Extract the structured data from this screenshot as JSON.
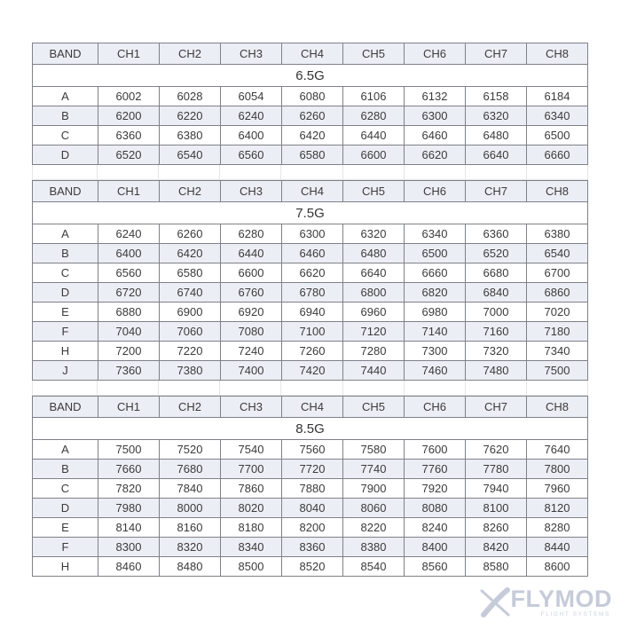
{
  "colors": {
    "border_dark": "#7e8187",
    "border_light": "#e4e5e9",
    "header_bg": "#eceef5",
    "stripe_bg": "#eceef5",
    "text": "#3b3b3b",
    "logo": "#c6cbd9"
  },
  "logo": {
    "x_icon": "x-blades-icon",
    "name": "FLYMOD",
    "tagline": "FLIGHT SYSTEMS"
  },
  "chart_data": [
    {
      "type": "table",
      "title": "6.5G",
      "columns": [
        "BAND",
        "CH1",
        "CH2",
        "CH3",
        "CH4",
        "CH5",
        "CH6",
        "CH7",
        "CH8"
      ],
      "rows": [
        [
          "A",
          "6002",
          "6028",
          "6054",
          "6080",
          "6106",
          "6132",
          "6158",
          "6184"
        ],
        [
          "B",
          "6200",
          "6220",
          "6240",
          "6260",
          "6280",
          "6300",
          "6320",
          "6340"
        ],
        [
          "C",
          "6360",
          "6380",
          "6400",
          "6420",
          "6440",
          "6460",
          "6480",
          "6500"
        ],
        [
          "D",
          "6520",
          "6540",
          "6560",
          "6580",
          "6600",
          "6620",
          "6640",
          "6660"
        ]
      ]
    },
    {
      "type": "table",
      "title": "7.5G",
      "columns": [
        "BAND",
        "CH1",
        "CH2",
        "CH3",
        "CH4",
        "CH5",
        "CH6",
        "CH7",
        "CH8"
      ],
      "rows": [
        [
          "A",
          "6240",
          "6260",
          "6280",
          "6300",
          "6320",
          "6340",
          "6360",
          "6380"
        ],
        [
          "B",
          "6400",
          "6420",
          "6440",
          "6460",
          "6480",
          "6500",
          "6520",
          "6540"
        ],
        [
          "C",
          "6560",
          "6580",
          "6600",
          "6620",
          "6640",
          "6660",
          "6680",
          "6700"
        ],
        [
          "D",
          "6720",
          "6740",
          "6760",
          "6780",
          "6800",
          "6820",
          "6840",
          "6860"
        ],
        [
          "E",
          "6880",
          "6900",
          "6920",
          "6940",
          "6960",
          "6980",
          "7000",
          "7020"
        ],
        [
          "F",
          "7040",
          "7060",
          "7080",
          "7100",
          "7120",
          "7140",
          "7160",
          "7180"
        ],
        [
          "H",
          "7200",
          "7220",
          "7240",
          "7260",
          "7280",
          "7300",
          "7320",
          "7340"
        ],
        [
          "J",
          "7360",
          "7380",
          "7400",
          "7420",
          "7440",
          "7460",
          "7480",
          "7500"
        ]
      ]
    },
    {
      "type": "table",
      "title": "8.5G",
      "columns": [
        "BAND",
        "CH1",
        "CH2",
        "CH3",
        "CH4",
        "CH5",
        "CH6",
        "CH7",
        "CH8"
      ],
      "rows": [
        [
          "A",
          "7500",
          "7520",
          "7540",
          "7560",
          "7580",
          "7600",
          "7620",
          "7640"
        ],
        [
          "B",
          "7660",
          "7680",
          "7700",
          "7720",
          "7740",
          "7760",
          "7780",
          "7800"
        ],
        [
          "C",
          "7820",
          "7840",
          "7860",
          "7880",
          "7900",
          "7920",
          "7940",
          "7960"
        ],
        [
          "D",
          "7980",
          "8000",
          "8020",
          "8040",
          "8060",
          "8080",
          "8100",
          "8120"
        ],
        [
          "E",
          "8140",
          "8160",
          "8180",
          "8200",
          "8220",
          "8240",
          "8260",
          "8280"
        ],
        [
          "F",
          "8300",
          "8320",
          "8340",
          "8360",
          "8380",
          "8400",
          "8420",
          "8440"
        ],
        [
          "H",
          "8460",
          "8480",
          "8500",
          "8520",
          "8540",
          "8560",
          "8580",
          "8600"
        ]
      ]
    }
  ]
}
